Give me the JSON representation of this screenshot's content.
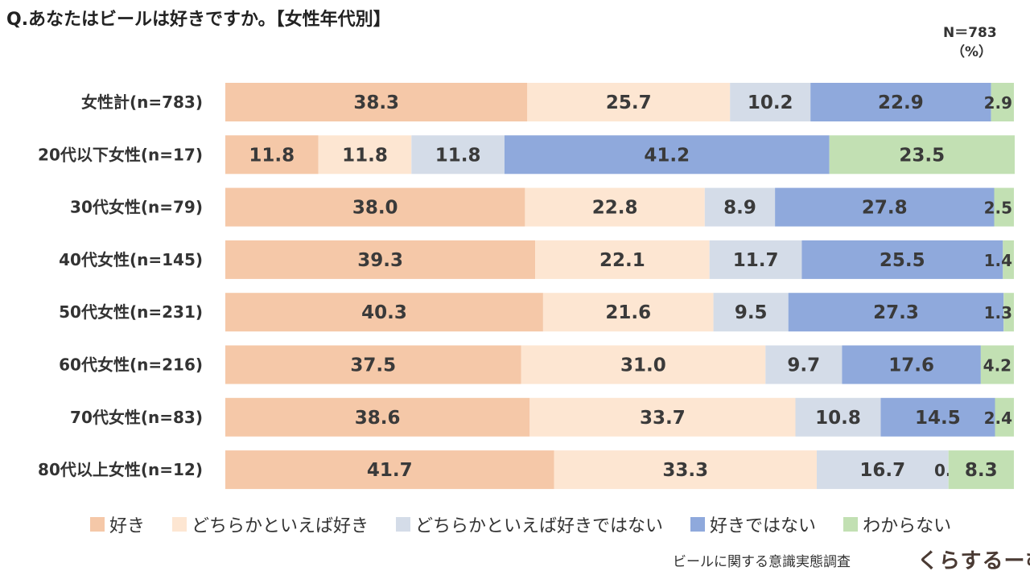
{
  "chart_data": {
    "type": "bar",
    "orientation": "horizontal",
    "stacked": true,
    "title": "Q.あなたはビールは好きですか。【女性年代別】",
    "sample_note": "N＝783",
    "unit": "（%）",
    "xlim": [
      0,
      100
    ],
    "categories": [
      "女性計(n=783)",
      "20代以下女性(n=17)",
      "30代女性(n=79)",
      "40代女性(n=145)",
      "50代女性(n=231)",
      "60代女性(n=216)",
      "70代女性(n=83)",
      "80代以上女性(n=12)"
    ],
    "series": [
      {
        "name": "好き",
        "color": "#F5C8A8",
        "values": [
          38.3,
          11.8,
          38.0,
          39.3,
          40.3,
          37.5,
          38.6,
          41.7
        ]
      },
      {
        "name": "どちらかといえば好き",
        "color": "#FDE6D2",
        "values": [
          25.7,
          11.8,
          22.8,
          22.1,
          21.6,
          31.0,
          33.7,
          33.3
        ]
      },
      {
        "name": "どちらかといえば好きではない",
        "color": "#D4DCE8",
        "values": [
          10.2,
          11.8,
          8.9,
          11.7,
          9.5,
          9.7,
          10.8,
          16.7
        ]
      },
      {
        "name": "好きではない",
        "color": "#8FA9DC",
        "values": [
          22.9,
          41.2,
          27.8,
          25.5,
          27.3,
          17.6,
          14.5,
          0.0
        ]
      },
      {
        "name": "わからない",
        "color": "#C2E0B3",
        "values": [
          2.9,
          23.5,
          2.5,
          1.4,
          1.3,
          4.2,
          2.4,
          8.3
        ]
      }
    ],
    "legend_position": "bottom"
  },
  "source": "ビールに関する意識実態調査",
  "brand": "くらするーむ"
}
